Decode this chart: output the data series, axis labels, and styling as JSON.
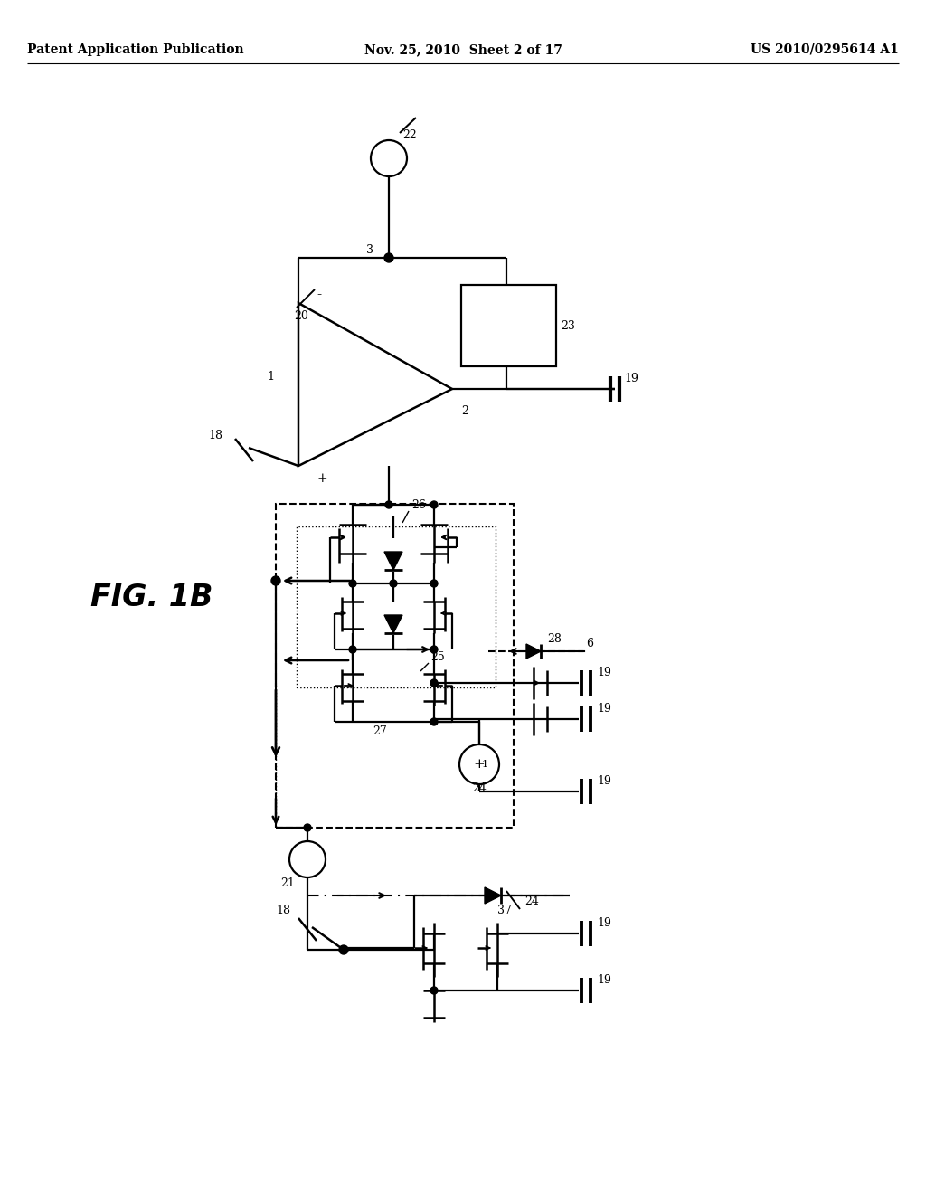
{
  "header_left": "Patent Application Publication",
  "header_center": "Nov. 25, 2010  Sheet 2 of 17",
  "header_right": "US 2010/0295614 A1",
  "fig_label": "FIG. 1B",
  "bg_color": "#ffffff"
}
